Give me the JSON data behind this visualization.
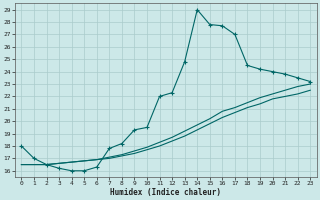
{
  "xlabel": "Humidex (Indice chaleur)",
  "bg_color": "#cce8e8",
  "grid_color": "#aacccc",
  "line_color": "#006666",
  "xlim": [
    -0.5,
    23.5
  ],
  "ylim": [
    15.5,
    29.5
  ],
  "xticks": [
    0,
    1,
    2,
    3,
    4,
    5,
    6,
    7,
    8,
    9,
    10,
    11,
    12,
    13,
    14,
    15,
    16,
    17,
    18,
    19,
    20,
    21,
    22,
    23
  ],
  "yticks": [
    16,
    17,
    18,
    19,
    20,
    21,
    22,
    23,
    24,
    25,
    26,
    27,
    28,
    29
  ],
  "series1_x": [
    0,
    1,
    2,
    3,
    4,
    5,
    6,
    7,
    8,
    9,
    10,
    11,
    12,
    13,
    14,
    15,
    16,
    17,
    18,
    19,
    20,
    21,
    22,
    23
  ],
  "series1_y": [
    18.0,
    17.0,
    16.5,
    16.2,
    16.0,
    16.0,
    16.3,
    17.8,
    18.2,
    19.3,
    19.5,
    22.0,
    22.3,
    24.8,
    29.0,
    27.8,
    27.7,
    27.0,
    24.5,
    24.2,
    24.0,
    23.8,
    23.5,
    23.2
  ],
  "series2_x": [
    0,
    1,
    2,
    3,
    4,
    5,
    6,
    7,
    8,
    9,
    10,
    11,
    12,
    13,
    14,
    15,
    16,
    17,
    18,
    19,
    20,
    21,
    22,
    23
  ],
  "series2_y": [
    16.5,
    16.5,
    16.5,
    16.6,
    16.7,
    16.8,
    16.9,
    17.1,
    17.3,
    17.6,
    17.9,
    18.3,
    18.7,
    19.2,
    19.7,
    20.2,
    20.8,
    21.1,
    21.5,
    21.9,
    22.2,
    22.5,
    22.8,
    23.0
  ],
  "series3_x": [
    0,
    1,
    2,
    3,
    4,
    5,
    6,
    7,
    8,
    9,
    10,
    11,
    12,
    13,
    14,
    15,
    16,
    17,
    18,
    19,
    20,
    21,
    22,
    23
  ],
  "series3_y": [
    16.5,
    16.5,
    16.5,
    16.6,
    16.7,
    16.8,
    16.9,
    17.0,
    17.2,
    17.4,
    17.7,
    18.0,
    18.4,
    18.8,
    19.3,
    19.8,
    20.3,
    20.7,
    21.1,
    21.4,
    21.8,
    22.0,
    22.2,
    22.5
  ]
}
